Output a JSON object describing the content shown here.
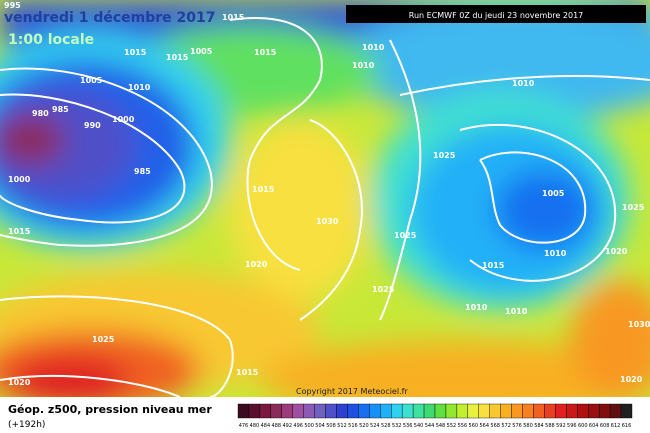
{
  "header": {
    "date": "vendredi 1 décembre 2017",
    "time": "1:00 locale",
    "run": "Run ECMWF 0Z du jeudi 23 novembre 2017"
  },
  "footer": {
    "title": "Géop. z500, pression niveau mer",
    "lead": "(+192h)",
    "copyright": "Copyright 2017 Meteociel.fr"
  },
  "isobar_labels": [
    "980",
    "985",
    "990",
    "1000",
    "1000",
    "985",
    "1015",
    "1015",
    "1020",
    "1030",
    "1025",
    "1025",
    "1025",
    "1010",
    "1005",
    "1010",
    "1015",
    "1010",
    "1010",
    "1020",
    "1025",
    "1030",
    "1020",
    "1025",
    "1020",
    "1015",
    "1015",
    "1005",
    "1015",
    "1015",
    "1015",
    "1005",
    "1010",
    "1010",
    "1010",
    "995"
  ],
  "colorbar": [
    {
      "value": 476,
      "color": "#3a0a1e"
    },
    {
      "value": 480,
      "color": "#5a0f2c"
    },
    {
      "value": 484,
      "color": "#7a1840"
    },
    {
      "value": 488,
      "color": "#8c2a5c"
    },
    {
      "value": 492,
      "color": "#9c3c7c"
    },
    {
      "value": 496,
      "color": "#a050a0"
    },
    {
      "value": 500,
      "color": "#8c5ab4"
    },
    {
      "value": 504,
      "color": "#7060c0"
    },
    {
      "value": 508,
      "color": "#5050c8"
    },
    {
      "value": 512,
      "color": "#3040d0"
    },
    {
      "value": 516,
      "color": "#2050e0"
    },
    {
      "value": 520,
      "color": "#1870f0"
    },
    {
      "value": 524,
      "color": "#1890f8"
    },
    {
      "value": 528,
      "color": "#20b0f8"
    },
    {
      "value": 532,
      "color": "#30d0f0"
    },
    {
      "value": 536,
      "color": "#40e0d0"
    },
    {
      "value": 540,
      "color": "#40e0a0"
    },
    {
      "value": 544,
      "color": "#40d870"
    },
    {
      "value": 548,
      "color": "#60e040"
    },
    {
      "value": 552,
      "color": "#90e830"
    },
    {
      "value": 556,
      "color": "#c0f030"
    },
    {
      "value": 560,
      "color": "#e8f040"
    },
    {
      "value": 564,
      "color": "#f8e040"
    },
    {
      "value": 568,
      "color": "#f8c830"
    },
    {
      "value": 572,
      "color": "#f8b020"
    },
    {
      "value": 576,
      "color": "#f89820"
    },
    {
      "value": 580,
      "color": "#f88020"
    },
    {
      "value": 584,
      "color": "#f06020"
    },
    {
      "value": 588,
      "color": "#e84020"
    },
    {
      "value": 592,
      "color": "#e02020"
    },
    {
      "value": 596,
      "color": "#c81818"
    },
    {
      "value": 600,
      "color": "#b01010"
    },
    {
      "value": 604,
      "color": "#981010"
    },
    {
      "value": 608,
      "color": "#801010"
    },
    {
      "value": 612,
      "color": "#601010"
    },
    {
      "value": 616,
      "color": "#202020"
    }
  ]
}
